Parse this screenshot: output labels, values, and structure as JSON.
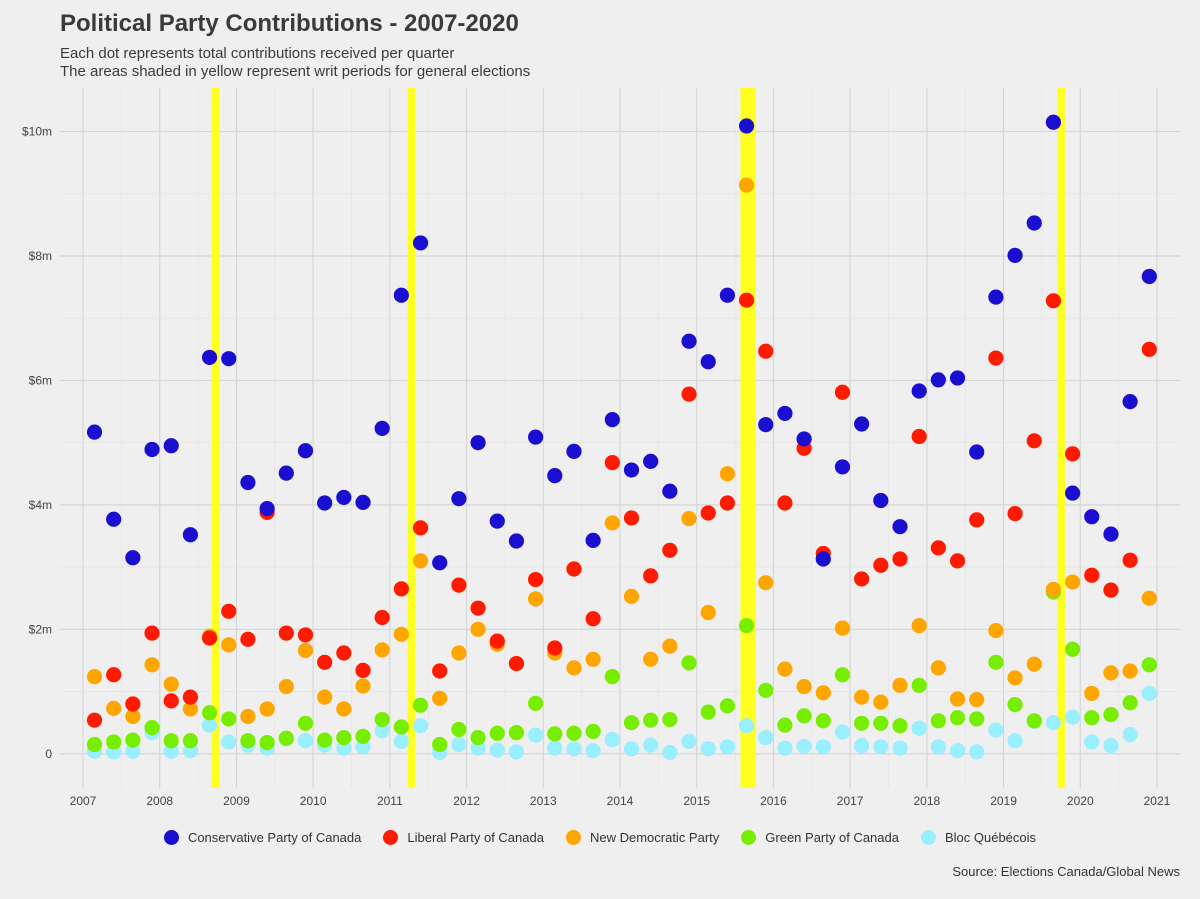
{
  "chart_data": {
    "type": "scatter",
    "title": "Political Party Contributions - 2007-2020",
    "subtitle_line1": "Each dot represents total contributions received per quarter",
    "subtitle_line2": "The areas shaded in yellow represent writ periods for general elections",
    "caption": "Source: Elections Canada/Global News",
    "xlim": [
      2006.7,
      2021.3
    ],
    "ylim": [
      -0.55,
      10.7
    ],
    "x_ticks": [
      2007,
      2008,
      2009,
      2010,
      2011,
      2012,
      2013,
      2014,
      2015,
      2016,
      2017,
      2018,
      2019,
      2020,
      2021
    ],
    "x_tick_labels": [
      "2007",
      "2008",
      "2009",
      "2010",
      "2011",
      "2012",
      "2013",
      "2014",
      "2015",
      "2016",
      "2017",
      "2018",
      "2019",
      "2020",
      "2021"
    ],
    "y_ticks": [
      0,
      2,
      4,
      6,
      8,
      10
    ],
    "y_tick_labels": [
      "0",
      "$2m",
      "$4m",
      "$6m",
      "$8m",
      "$10m"
    ],
    "grid": true,
    "legend_position": "bottom",
    "writ_periods": [
      {
        "start": 2008.68,
        "end": 2008.78
      },
      {
        "start": 2011.23,
        "end": 2011.33
      },
      {
        "start": 2015.57,
        "end": 2015.77
      },
      {
        "start": 2019.7,
        "end": 2019.8
      }
    ],
    "x": [
      2007.15,
      2007.4,
      2007.65,
      2007.9,
      2008.15,
      2008.4,
      2008.65,
      2008.9,
      2009.15,
      2009.4,
      2009.65,
      2009.9,
      2010.15,
      2010.4,
      2010.65,
      2010.9,
      2011.15,
      2011.4,
      2011.65,
      2011.9,
      2012.15,
      2012.4,
      2012.65,
      2012.9,
      2013.15,
      2013.4,
      2013.65,
      2013.9,
      2014.15,
      2014.4,
      2014.65,
      2014.9,
      2015.15,
      2015.4,
      2015.65,
      2015.9,
      2016.15,
      2016.4,
      2016.65,
      2016.9,
      2017.15,
      2017.4,
      2017.65,
      2017.9,
      2018.15,
      2018.4,
      2018.65,
      2018.9,
      2019.15,
      2019.4,
      2019.65,
      2019.9,
      2020.15,
      2020.4,
      2020.65,
      2020.9
    ],
    "series": [
      {
        "name": "Conservative Party of Canada",
        "color": "#1a0fd1",
        "values": [
          5.17,
          3.77,
          3.15,
          4.89,
          4.95,
          3.52,
          6.37,
          6.35,
          4.36,
          3.94,
          4.51,
          4.87,
          4.03,
          4.12,
          4.04,
          5.23,
          7.37,
          8.21,
          3.07,
          4.1,
          5.0,
          3.74,
          3.42,
          5.09,
          4.47,
          4.86,
          3.43,
          5.37,
          4.56,
          4.7,
          4.22,
          6.63,
          6.3,
          7.37,
          10.09,
          5.29,
          5.47,
          5.06,
          3.13,
          4.61,
          5.3,
          4.07,
          3.65,
          5.83,
          6.01,
          6.04,
          4.85,
          7.34,
          8.01,
          8.53,
          10.15,
          4.19,
          3.81,
          3.53,
          5.66,
          7.67
        ]
      },
      {
        "name": "Liberal Party of Canada",
        "color": "#ff1a00",
        "values": [
          0.54,
          1.27,
          0.8,
          1.94,
          0.85,
          0.91,
          1.86,
          2.29,
          1.84,
          3.88,
          1.94,
          1.91,
          1.47,
          1.62,
          1.34,
          2.19,
          2.65,
          3.63,
          1.33,
          2.71,
          2.34,
          1.81,
          1.45,
          2.8,
          1.7,
          2.97,
          2.17,
          4.68,
          3.79,
          2.86,
          3.27,
          5.78,
          3.87,
          4.03,
          7.29,
          6.47,
          4.03,
          4.91,
          3.22,
          5.81,
          2.81,
          3.03,
          3.13,
          5.1,
          3.31,
          3.1,
          3.76,
          6.36,
          3.86,
          5.03,
          7.28,
          4.82,
          2.87,
          2.63,
          3.11,
          6.5
        ]
      },
      {
        "name": "New Democratic Party",
        "color": "#ffa500",
        "values": [
          1.24,
          0.73,
          0.6,
          1.43,
          1.12,
          0.72,
          1.89,
          1.75,
          0.6,
          0.72,
          1.08,
          1.66,
          0.91,
          0.72,
          1.09,
          1.67,
          1.92,
          3.1,
          0.89,
          1.62,
          2.0,
          1.76,
          1.45,
          2.49,
          1.62,
          1.38,
          1.52,
          3.71,
          2.53,
          1.52,
          1.73,
          3.78,
          2.27,
          4.5,
          9.14,
          2.75,
          1.36,
          1.08,
          0.98,
          2.02,
          0.91,
          0.83,
          1.1,
          2.06,
          1.38,
          0.88,
          0.87,
          1.98,
          1.22,
          1.44,
          2.64,
          2.76,
          0.97,
          1.3,
          1.33,
          2.5
        ]
      },
      {
        "name": "Green Party of Canada",
        "color": "#77ee00",
        "values": [
          0.15,
          0.19,
          0.22,
          0.42,
          0.21,
          0.21,
          0.66,
          0.56,
          0.21,
          0.18,
          0.25,
          0.49,
          0.22,
          0.26,
          0.28,
          0.55,
          0.43,
          0.78,
          0.15,
          0.39,
          0.26,
          0.33,
          0.34,
          0.81,
          0.32,
          0.33,
          0.36,
          1.24,
          0.5,
          0.54,
          0.55,
          1.46,
          0.67,
          0.77,
          2.06,
          1.02,
          0.46,
          0.61,
          0.53,
          1.27,
          0.49,
          0.49,
          0.45,
          1.1,
          0.53,
          0.58,
          0.56,
          1.47,
          0.79,
          0.53,
          2.6,
          1.68,
          0.58,
          0.63,
          0.82,
          1.43
        ]
      },
      {
        "name": "Bloc Québécois",
        "color": "#99eeff",
        "values": [
          0.04,
          0.03,
          0.04,
          0.34,
          0.04,
          0.05,
          0.46,
          0.19,
          0.14,
          0.09,
          0.24,
          0.21,
          0.14,
          0.09,
          0.11,
          0.37,
          0.2,
          0.45,
          0.02,
          0.15,
          0.09,
          0.06,
          0.03,
          0.3,
          0.09,
          0.08,
          0.05,
          0.23,
          0.08,
          0.14,
          0.02,
          0.2,
          0.08,
          0.11,
          0.45,
          0.26,
          0.09,
          0.12,
          0.11,
          0.35,
          0.13,
          0.11,
          0.09,
          0.41,
          0.11,
          0.05,
          0.03,
          0.38,
          0.21,
          0.52,
          0.5,
          0.59,
          0.19,
          0.13,
          0.31,
          0.97
        ]
      }
    ]
  }
}
